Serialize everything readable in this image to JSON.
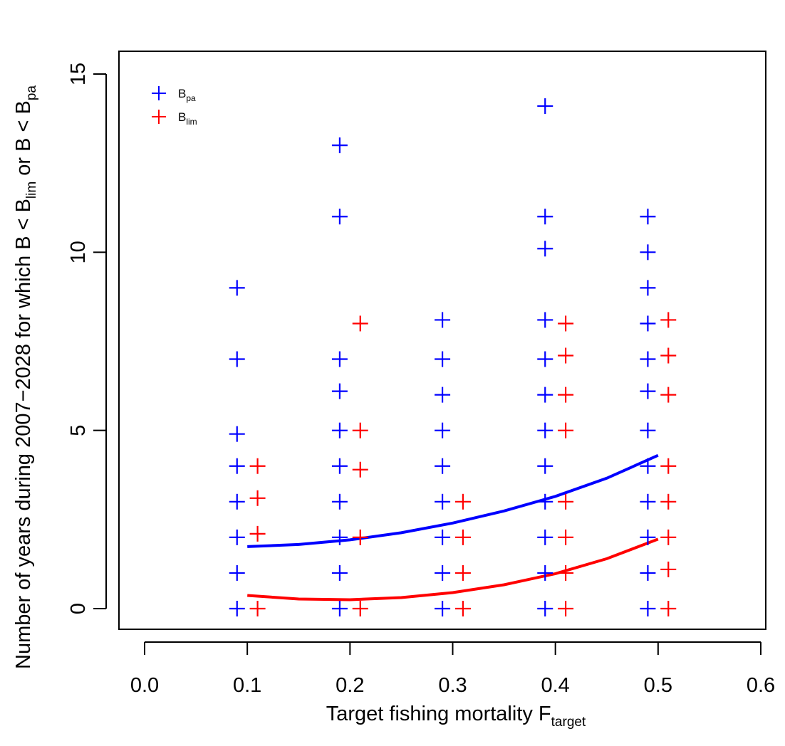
{
  "chart_data": {
    "type": "scatter",
    "xlabel": {
      "main": "Target fishing mortality F",
      "sub": "target"
    },
    "ylabel": {
      "p1": "Number of years during 2007−2028 for which B < B",
      "sub1": "lim",
      "p2": " or B < B",
      "sub2": "pa"
    },
    "xlim": [
      0.0,
      0.6
    ],
    "ylim": [
      0,
      15
    ],
    "xticks": [
      "0.0",
      "0.1",
      "0.2",
      "0.3",
      "0.4",
      "0.5",
      "0.6"
    ],
    "yticks": [
      "0",
      "5",
      "10",
      "15"
    ],
    "grid": false,
    "legend_position": "top-left",
    "legend": [
      {
        "main": "B",
        "sub": "pa",
        "color": "#0000ff"
      },
      {
        "main": "B",
        "sub": "lim",
        "color": "#ff0000"
      }
    ],
    "marker": "+",
    "series": [
      {
        "name": "Bpa",
        "color": "#0000ff",
        "points": [
          {
            "x": 0.09,
            "y": 0
          },
          {
            "x": 0.09,
            "y": 1
          },
          {
            "x": 0.09,
            "y": 2
          },
          {
            "x": 0.09,
            "y": 3
          },
          {
            "x": 0.09,
            "y": 4
          },
          {
            "x": 0.09,
            "y": 4.9
          },
          {
            "x": 0.09,
            "y": 7
          },
          {
            "x": 0.09,
            "y": 9
          },
          {
            "x": 0.19,
            "y": 0
          },
          {
            "x": 0.19,
            "y": 1
          },
          {
            "x": 0.19,
            "y": 2
          },
          {
            "x": 0.19,
            "y": 3
          },
          {
            "x": 0.19,
            "y": 4
          },
          {
            "x": 0.19,
            "y": 5
          },
          {
            "x": 0.19,
            "y": 6.1
          },
          {
            "x": 0.19,
            "y": 7
          },
          {
            "x": 0.19,
            "y": 11
          },
          {
            "x": 0.19,
            "y": 13
          },
          {
            "x": 0.29,
            "y": 0
          },
          {
            "x": 0.29,
            "y": 1
          },
          {
            "x": 0.29,
            "y": 2
          },
          {
            "x": 0.29,
            "y": 3
          },
          {
            "x": 0.29,
            "y": 4
          },
          {
            "x": 0.29,
            "y": 5
          },
          {
            "x": 0.29,
            "y": 6
          },
          {
            "x": 0.29,
            "y": 7
          },
          {
            "x": 0.29,
            "y": 8.1
          },
          {
            "x": 0.39,
            "y": 0
          },
          {
            "x": 0.39,
            "y": 1
          },
          {
            "x": 0.39,
            "y": 2
          },
          {
            "x": 0.39,
            "y": 3
          },
          {
            "x": 0.39,
            "y": 4
          },
          {
            "x": 0.39,
            "y": 5
          },
          {
            "x": 0.39,
            "y": 6
          },
          {
            "x": 0.39,
            "y": 7
          },
          {
            "x": 0.39,
            "y": 8.1
          },
          {
            "x": 0.39,
            "y": 10.1
          },
          {
            "x": 0.39,
            "y": 11
          },
          {
            "x": 0.39,
            "y": 14.1
          },
          {
            "x": 0.49,
            "y": 0
          },
          {
            "x": 0.49,
            "y": 1
          },
          {
            "x": 0.49,
            "y": 2
          },
          {
            "x": 0.49,
            "y": 3
          },
          {
            "x": 0.49,
            "y": 4
          },
          {
            "x": 0.49,
            "y": 5
          },
          {
            "x": 0.49,
            "y": 6.1
          },
          {
            "x": 0.49,
            "y": 7
          },
          {
            "x": 0.49,
            "y": 8
          },
          {
            "x": 0.49,
            "y": 9
          },
          {
            "x": 0.49,
            "y": 10
          },
          {
            "x": 0.49,
            "y": 11
          }
        ]
      },
      {
        "name": "Blim",
        "color": "#ff0000",
        "points": [
          {
            "x": 0.11,
            "y": 0
          },
          {
            "x": 0.11,
            "y": 2.1
          },
          {
            "x": 0.11,
            "y": 3.1
          },
          {
            "x": 0.11,
            "y": 4
          },
          {
            "x": 0.21,
            "y": 0
          },
          {
            "x": 0.21,
            "y": 2
          },
          {
            "x": 0.21,
            "y": 3.9
          },
          {
            "x": 0.21,
            "y": 5
          },
          {
            "x": 0.21,
            "y": 8
          },
          {
            "x": 0.31,
            "y": 0
          },
          {
            "x": 0.31,
            "y": 1
          },
          {
            "x": 0.31,
            "y": 2
          },
          {
            "x": 0.31,
            "y": 3
          },
          {
            "x": 0.41,
            "y": 0
          },
          {
            "x": 0.41,
            "y": 1
          },
          {
            "x": 0.41,
            "y": 2
          },
          {
            "x": 0.41,
            "y": 3
          },
          {
            "x": 0.41,
            "y": 5
          },
          {
            "x": 0.41,
            "y": 6
          },
          {
            "x": 0.41,
            "y": 7.1
          },
          {
            "x": 0.41,
            "y": 8
          },
          {
            "x": 0.51,
            "y": 0
          },
          {
            "x": 0.51,
            "y": 1.1
          },
          {
            "x": 0.51,
            "y": 2
          },
          {
            "x": 0.51,
            "y": 3
          },
          {
            "x": 0.51,
            "y": 4
          },
          {
            "x": 0.51,
            "y": 6
          },
          {
            "x": 0.51,
            "y": 7.1
          },
          {
            "x": 0.51,
            "y": 8.1
          }
        ]
      }
    ],
    "trend_lines": [
      {
        "name": "Bpa fit",
        "color": "#0000ff",
        "points": [
          {
            "x": 0.1,
            "y": 1.74
          },
          {
            "x": 0.15,
            "y": 1.8
          },
          {
            "x": 0.2,
            "y": 1.93
          },
          {
            "x": 0.25,
            "y": 2.13
          },
          {
            "x": 0.3,
            "y": 2.4
          },
          {
            "x": 0.35,
            "y": 2.74
          },
          {
            "x": 0.4,
            "y": 3.15
          },
          {
            "x": 0.45,
            "y": 3.66
          },
          {
            "x": 0.5,
            "y": 4.3
          }
        ]
      },
      {
        "name": "Blim fit",
        "color": "#ff0000",
        "points": [
          {
            "x": 0.1,
            "y": 0.37
          },
          {
            "x": 0.15,
            "y": 0.27
          },
          {
            "x": 0.2,
            "y": 0.25
          },
          {
            "x": 0.25,
            "y": 0.31
          },
          {
            "x": 0.3,
            "y": 0.45
          },
          {
            "x": 0.35,
            "y": 0.67
          },
          {
            "x": 0.4,
            "y": 0.98
          },
          {
            "x": 0.45,
            "y": 1.4
          },
          {
            "x": 0.5,
            "y": 1.95
          }
        ]
      }
    ]
  }
}
